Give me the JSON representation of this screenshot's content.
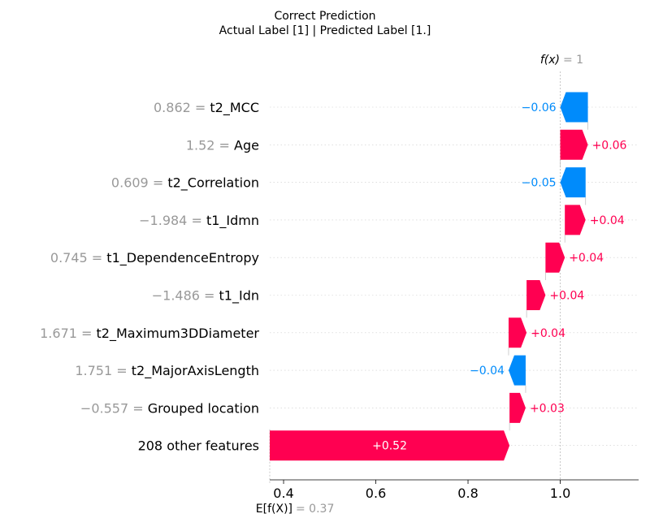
{
  "chart_data": {
    "type": "waterfall",
    "title": "Correct Prediction",
    "subtitle": "Actual Label [1] | Predicted Label [1.]",
    "fx_label": "f(x)",
    "fx_value_text": "= 1",
    "fx": 1.0,
    "base_label": "E[f(X)]",
    "base_value_text": "= 0.37",
    "base_value": 0.37,
    "xlim": [
      0.37,
      1.17
    ],
    "xticks": [
      0.4,
      0.6,
      0.8,
      1.0
    ],
    "xtick_labels": [
      "0.4",
      "0.6",
      "0.8",
      "1.0"
    ],
    "rows": [
      {
        "value_text": "0.862",
        "feature": "t2_MCC",
        "contribution": -0.06,
        "label": "−0.06",
        "start": 1.06,
        "end": 1.0
      },
      {
        "value_text": "1.52",
        "feature": "Age",
        "contribution": 0.06,
        "label": "+0.06",
        "start": 1.0,
        "end": 1.06
      },
      {
        "value_text": "0.609",
        "feature": "t2_Correlation",
        "contribution": -0.05,
        "label": "−0.05",
        "start": 1.055,
        "end": 1.0
      },
      {
        "value_text": "−1.984",
        "feature": "t1_Idmn",
        "contribution": 0.04,
        "label": "+0.04",
        "start": 1.01,
        "end": 1.055
      },
      {
        "value_text": "0.745",
        "feature": "t1_DependenceEntropy",
        "contribution": 0.04,
        "label": "+0.04",
        "start": 0.968,
        "end": 1.01
      },
      {
        "value_text": "−1.486",
        "feature": "t1_Idn",
        "contribution": 0.04,
        "label": "+0.04",
        "start": 0.927,
        "end": 0.968
      },
      {
        "value_text": "1.671",
        "feature": "t2_Maximum3DDiameter",
        "contribution": 0.04,
        "label": "+0.04",
        "start": 0.888,
        "end": 0.927
      },
      {
        "value_text": "1.751",
        "feature": "t2_MajorAxisLength",
        "contribution": -0.04,
        "label": "−0.04",
        "start": 0.925,
        "end": 0.888
      },
      {
        "value_text": "−0.557",
        "feature": "Grouped location",
        "contribution": 0.03,
        "label": "+0.03",
        "start": 0.89,
        "end": 0.925
      },
      {
        "value_text": "",
        "feature": "208 other features",
        "contribution": 0.52,
        "label": "+0.52",
        "start": 0.37,
        "end": 0.89
      }
    ],
    "colors": {
      "positive": "#ff0051",
      "negative": "#008bfb",
      "feature_value": "#999999",
      "grid": "#cccccc"
    }
  }
}
